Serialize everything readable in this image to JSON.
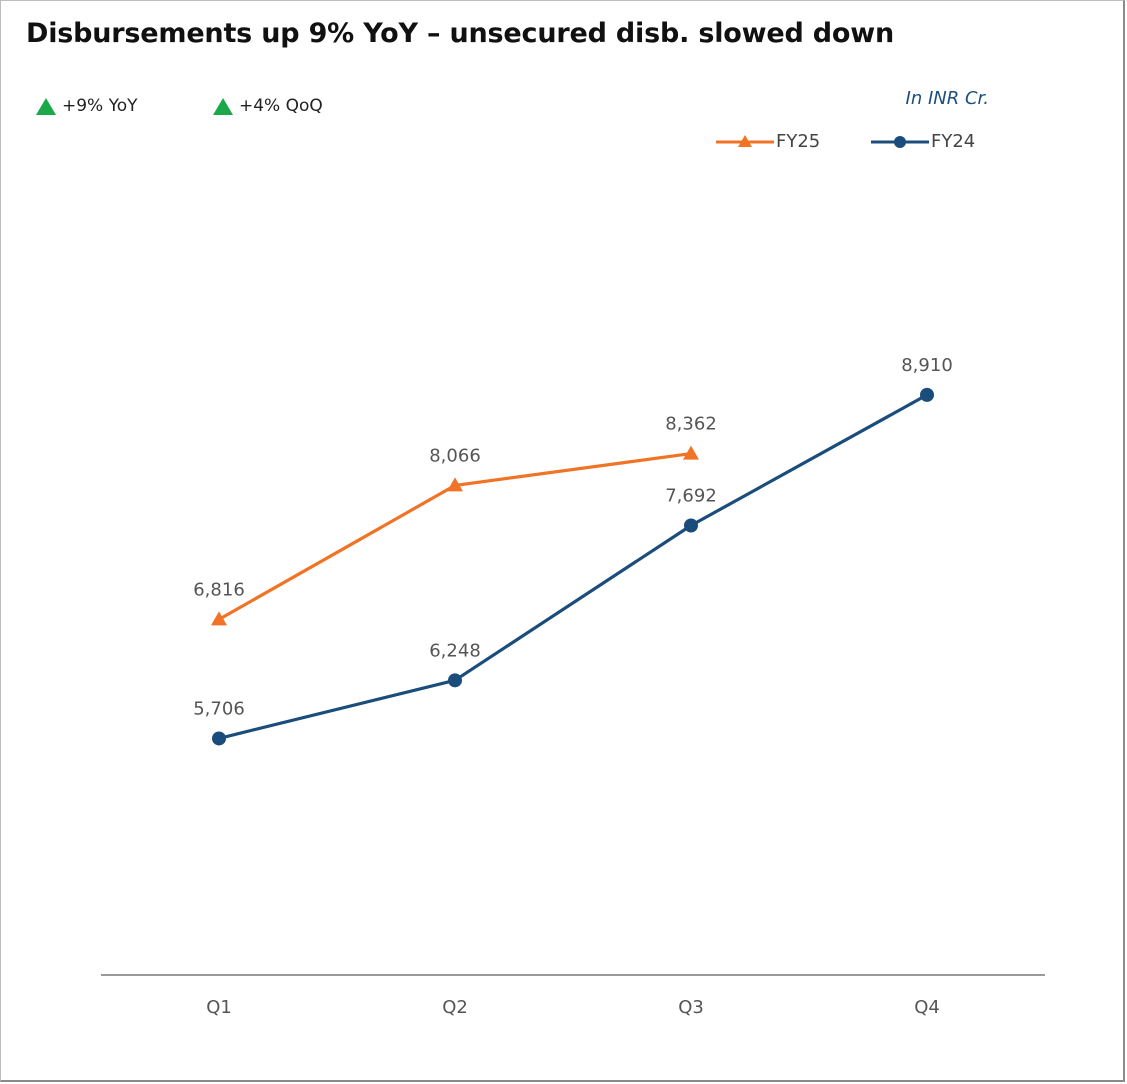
{
  "chart_data": {
    "type": "line",
    "title": "Disbursements up 9% YoY – unsecured disb. slowed down",
    "unit_note": "In INR Cr.",
    "kpis": [
      {
        "text": "+9% YoY",
        "color": "#1aa84a"
      },
      {
        "text": "+4% QoQ",
        "color": "#1aa84a"
      }
    ],
    "categories": [
      "Q1",
      "Q2",
      "Q3",
      "Q4"
    ],
    "series": [
      {
        "name": "FY25",
        "color": "#f07326",
        "marker": "triangle",
        "values": [
          6816,
          8066,
          8362,
          null
        ],
        "labels": [
          "6,816",
          "8,066",
          "8,362",
          ""
        ]
      },
      {
        "name": "FY24",
        "color": "#1a4d7c",
        "marker": "circle",
        "values": [
          5706,
          6248,
          7692,
          8910
        ],
        "labels": [
          "5,706",
          "6,248",
          "7,692",
          "8,910"
        ]
      }
    ],
    "xlabel": "",
    "ylabel": "",
    "ylim": [
      3500,
      10000
    ],
    "grid": false,
    "legend_position": "top-right"
  }
}
